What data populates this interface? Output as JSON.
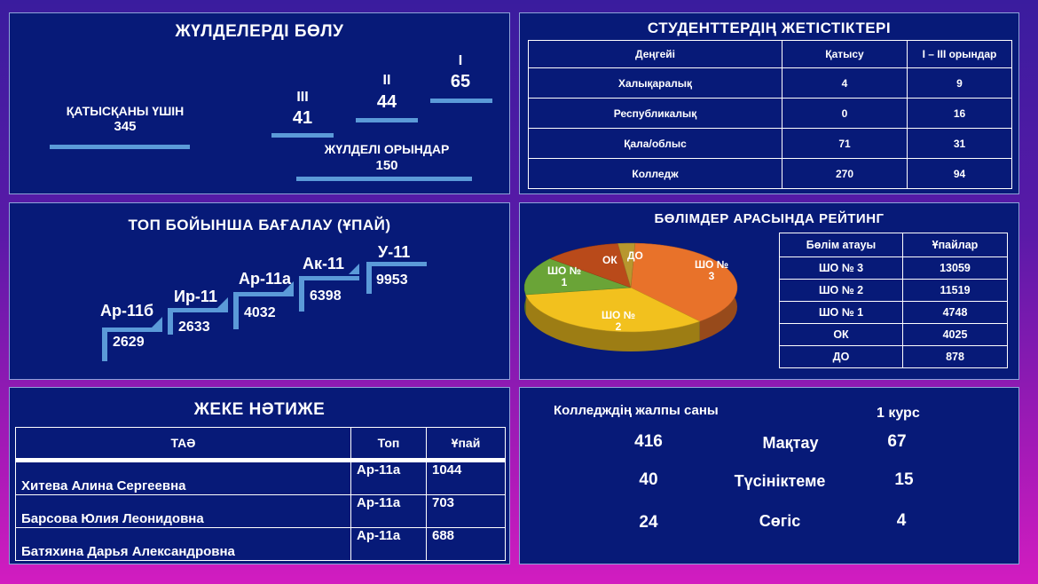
{
  "awards": {
    "title": "ЖҮЛДЕЛЕРДІ БӨЛУ",
    "participation_label": "ҚАТЫСҚАНЫ ҮШІН",
    "participation_value": "345",
    "third_label": "III",
    "third_value": "41",
    "second_label": "II",
    "second_value": "44",
    "first_label": "I",
    "first_value": "65",
    "prize_label": "ЖҮЛДЕЛІ ОРЫНДАР",
    "prize_value": "150"
  },
  "achievements": {
    "title": "СТУДЕНТТЕРДІҢ ЖЕТІСТІКТЕРІ",
    "headers": [
      "Деңгейі",
      "Қатысу",
      "I – III орындар"
    ],
    "rows": [
      [
        "Халықаралық",
        "4",
        "9"
      ],
      [
        "Республикалық",
        "0",
        "16"
      ],
      [
        "Қала/облыс",
        "71",
        "31"
      ],
      [
        "Колледж",
        "270",
        "94"
      ]
    ]
  },
  "groups": {
    "title": "ТОП БОЙЫНША  БАҒАЛАУ (ҰПАЙ)",
    "items": [
      {
        "name": "Ар-11б",
        "value": "2629"
      },
      {
        "name": "Ир-11",
        "value": "2633"
      },
      {
        "name": "Ар-11а",
        "value": "4032"
      },
      {
        "name": "Ак-11",
        "value": "6398"
      },
      {
        "name": "У-11",
        "value": "9953"
      }
    ],
    "accent": "#5b9ad8"
  },
  "rating": {
    "title": "БӨЛІМДЕР АРАСЫНДА РЕЙТИНГ",
    "headers": [
      "Бөлім атауы",
      "Ұпайлар"
    ],
    "rows": [
      [
        "ШО № 3",
        "13059"
      ],
      [
        "ШО № 2",
        "11519"
      ],
      [
        "ШО № 1",
        "4748"
      ],
      [
        "ОК",
        "4025"
      ],
      [
        "ДО",
        "878"
      ]
    ],
    "pie_labels": {
      "sho3_a": "ШО №",
      "sho3_b": "3",
      "sho2_a": "ШО №",
      "sho2_b": "2",
      "sho1_a": "ШО №",
      "sho1_b": "1",
      "ok": "ОК",
      "do": "ДО"
    },
    "colors": {
      "sho3": "#e8722a",
      "sho2": "#f2c11e",
      "sho1": "#6aa437",
      "ok": "#b94a1a",
      "do": "#b8972e"
    }
  },
  "chart_data": {
    "type": "pie",
    "categories": [
      "ШО № 3",
      "ШО № 2",
      "ШО № 1",
      "ОК",
      "ДО"
    ],
    "values": [
      13059,
      11519,
      4748,
      4025,
      878
    ],
    "title": "БӨЛІМДЕР АРАСЫНДА РЕЙТИНГ"
  },
  "individual": {
    "title": "ЖЕКЕ НӘТИЖЕ",
    "headers": [
      "ТАӘ",
      "Топ",
      "Ұпай"
    ],
    "rows": [
      [
        "Хитева Алина Сергеевна",
        "Ар-11а",
        "1044"
      ],
      [
        "Барсова Юлия Леонидовна",
        "Ар-11а",
        "703"
      ],
      [
        "Батяхина Дарья Александровна",
        "Ар-11а",
        "688"
      ]
    ]
  },
  "college": {
    "total_label": "Колледждің жалпы саны",
    "course_label": "1 курс",
    "rows": [
      {
        "total": "416",
        "label": "Мақтау",
        "course": "67"
      },
      {
        "total": "40",
        "label": "Түсініктеме",
        "course": "15"
      },
      {
        "total": "24",
        "label": "Сөгіс",
        "course": "4"
      }
    ]
  }
}
